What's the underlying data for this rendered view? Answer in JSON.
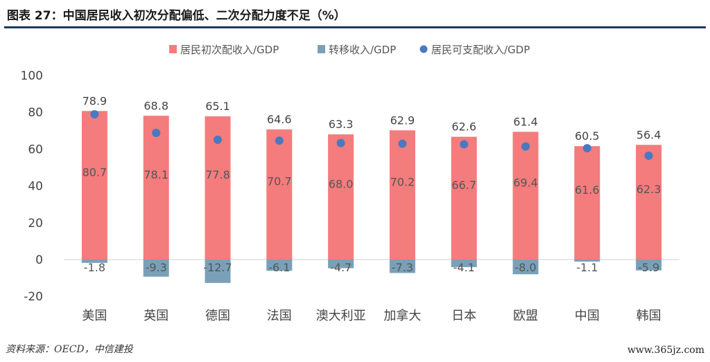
{
  "figure": {
    "title": "图表 27：中国居民收入初次分配偏低、二次分配力度不足（%）",
    "source": "资料来源：OECD，中信建投",
    "watermark": "www.365jz.com"
  },
  "colors": {
    "primary": "#f47c7c",
    "transfer": "#7aa0b8",
    "disposable": "#4a78c2",
    "axis_text": "#444444",
    "zero_line": "#cfcfcf"
  },
  "chart_data": {
    "type": "bar",
    "categories": [
      "美国",
      "英国",
      "德国",
      "法国",
      "澳大利亚",
      "加拿大",
      "日本",
      "欧盟",
      "中国",
      "韩国"
    ],
    "series": [
      {
        "name": "居民初次配收入/GDP",
        "kind": "bar",
        "values": [
          80.7,
          78.1,
          77.8,
          70.7,
          68.0,
          70.2,
          66.7,
          69.4,
          61.6,
          62.3
        ]
      },
      {
        "name": "转移收入/GDP",
        "kind": "bar",
        "values": [
          -1.8,
          -9.3,
          -12.7,
          -6.1,
          -4.7,
          -7.3,
          -4.1,
          -8.0,
          -1.1,
          -5.9
        ]
      },
      {
        "name": "居民可支配收入/GDP",
        "kind": "dot",
        "values": [
          78.9,
          68.8,
          65.1,
          64.6,
          63.3,
          62.9,
          62.6,
          61.4,
          60.5,
          56.4
        ]
      }
    ],
    "primary_labels": [
      "80.7",
      "78.1",
      "77.8",
      "70.7",
      "68.0",
      "70.2",
      "66.7",
      "69.4",
      "61.6",
      "62.3"
    ],
    "transfer_labels": [
      "-1.8",
      "-9.3",
      "-12.7",
      "-6.1",
      "-4.7",
      "-7.3",
      "-4.1",
      "-8.0",
      "-1.1",
      "-5.9"
    ],
    "disposable_labels": [
      "78.9",
      "68.8",
      "65.1",
      "64.6",
      "63.3",
      "62.9",
      "62.6",
      "61.4",
      "60.5",
      "56.4"
    ],
    "yticks": [
      "100",
      "80",
      "60",
      "40",
      "20",
      "0",
      "-20"
    ],
    "ylim": [
      -20,
      100
    ],
    "legend_position": "top",
    "grid": false
  }
}
